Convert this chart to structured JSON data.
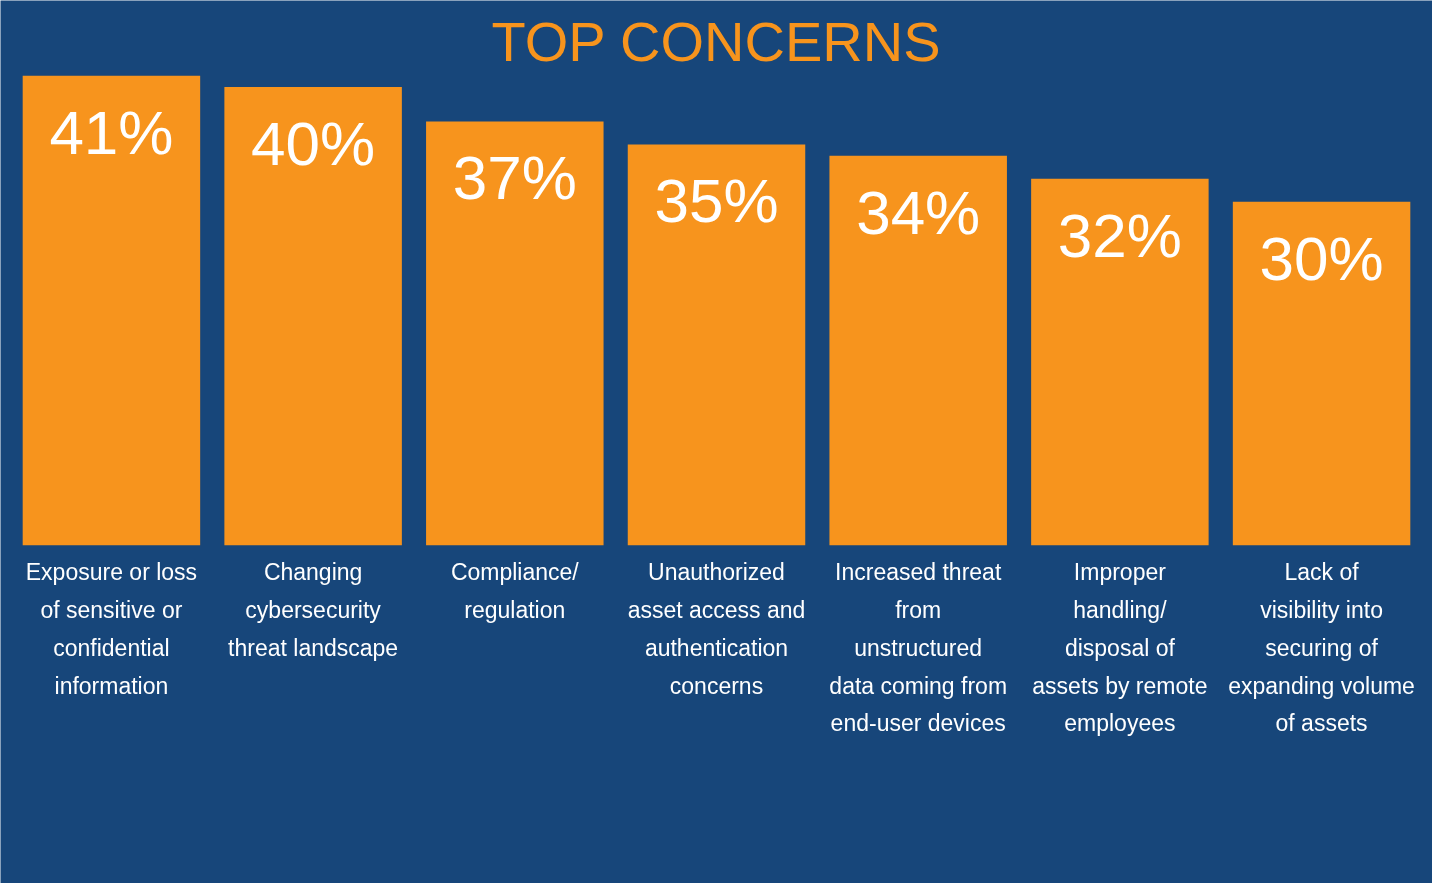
{
  "chart_data": {
    "type": "bar",
    "title": "TOP CONCERNS",
    "categories": [
      "Exposure or loss of sensitive or confidential information",
      "Changing cybersecurity threat landscape",
      "Compliance/ regulation",
      "Unauthorized asset access and authentication concerns",
      "Increased threat from unstructured data coming from end-user devices",
      "Improper handling/ disposal of assets by remote employees",
      "Lack of visibility into securing of expanding volume of assets"
    ],
    "values": [
      41,
      40,
      37,
      35,
      34,
      32,
      30
    ],
    "value_labels": [
      "41%",
      "40%",
      "37%",
      "35%",
      "34%",
      "32%",
      "30%"
    ],
    "color": "#f7941d"
  }
}
